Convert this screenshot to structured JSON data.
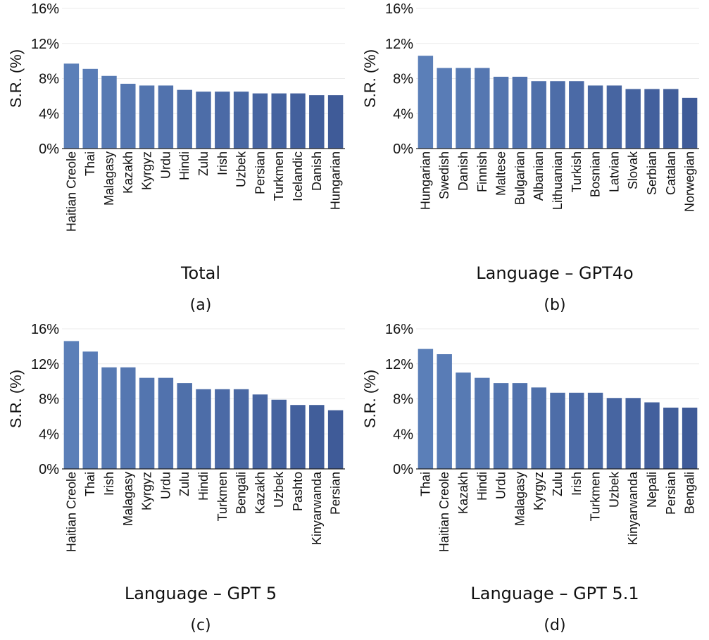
{
  "colors": {
    "bar_light": "#5b7fb8",
    "bar_dark": "#3f5b98"
  },
  "chart_data": [
    {
      "type": "bar",
      "title": "",
      "xlabel": "Total",
      "ylabel": "S.R. (%)",
      "caption": "(a)",
      "ylim": [
        0,
        16
      ],
      "yticks": [
        "0%",
        "4%",
        "8%",
        "12%",
        "16%"
      ],
      "categories": [
        "Haitian Creole",
        "Thai",
        "Malagasy",
        "Kazakh",
        "Kyrgyz",
        "Urdu",
        "Hindi",
        "Zulu",
        "Irish",
        "Uzbek",
        "Persian",
        "Turkmen",
        "Icelandic",
        "Danish",
        "Hungarian"
      ],
      "values": [
        9.7,
        9.1,
        8.3,
        7.4,
        7.2,
        7.2,
        6.7,
        6.5,
        6.5,
        6.5,
        6.3,
        6.3,
        6.3,
        6.1,
        6.1
      ]
    },
    {
      "type": "bar",
      "title": "",
      "xlabel": "Language – GPT4o",
      "ylabel": "S.R. (%)",
      "caption": "(b)",
      "ylim": [
        0,
        16
      ],
      "yticks": [
        "0%",
        "4%",
        "8%",
        "12%",
        "16%"
      ],
      "categories": [
        "Hungarian",
        "Swedish",
        "Danish",
        "Finnish",
        "Maltese",
        "Bulgarian",
        "Albanian",
        "Lithuanian",
        "Turkish",
        "Bosnian",
        "Latvian",
        "Slovak",
        "Serbian",
        "Catalan",
        "Norwegian"
      ],
      "values": [
        10.6,
        9.2,
        9.2,
        9.2,
        8.2,
        8.2,
        7.7,
        7.7,
        7.7,
        7.2,
        7.2,
        6.8,
        6.8,
        6.8,
        5.8
      ]
    },
    {
      "type": "bar",
      "title": "",
      "xlabel": "Language – GPT 5",
      "ylabel": "S.R. (%)",
      "caption": "(c)",
      "ylim": [
        0,
        16
      ],
      "yticks": [
        "0%",
        "4%",
        "8%",
        "12%",
        "16%"
      ],
      "categories": [
        "Haitian Creole",
        "Thai",
        "Irish",
        "Malagasy",
        "Kyrgyz",
        "Urdu",
        "Zulu",
        "Hindi",
        "Turkmen",
        "Bengali",
        "Kazakh",
        "Uzbek",
        "Pashto",
        "Kinyarwanda",
        "Persian"
      ],
      "values": [
        14.6,
        13.4,
        11.6,
        11.6,
        10.4,
        10.4,
        9.8,
        9.1,
        9.1,
        9.1,
        8.5,
        7.9,
        7.3,
        7.3,
        6.7
      ]
    },
    {
      "type": "bar",
      "title": "",
      "xlabel": "Language – GPT 5.1",
      "ylabel": "S.R. (%)",
      "caption": "(d)",
      "ylim": [
        0,
        16
      ],
      "yticks": [
        "0%",
        "4%",
        "8%",
        "12%",
        "16%"
      ],
      "categories": [
        "Thai",
        "Haitian Creole",
        "Kazakh",
        "Hindi",
        "Urdu",
        "Malagasy",
        "Kyrgyz",
        "Zulu",
        "Irish",
        "Turkmen",
        "Uzbek",
        "Kinyarwanda",
        "Nepali",
        "Persian",
        "Bengali"
      ],
      "values": [
        13.7,
        13.1,
        11.0,
        10.4,
        9.8,
        9.8,
        9.3,
        8.7,
        8.7,
        8.7,
        8.1,
        8.1,
        7.6,
        7.0,
        7.0
      ]
    }
  ]
}
